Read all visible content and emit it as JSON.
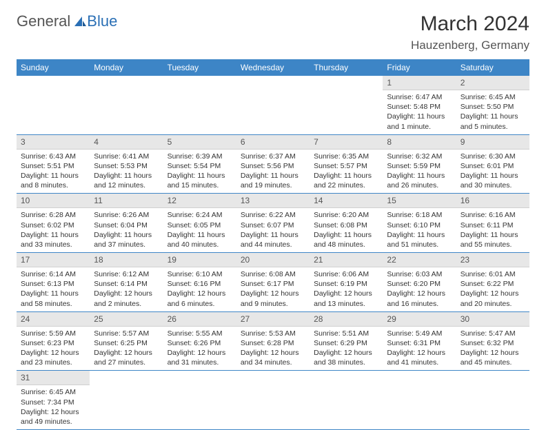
{
  "logo": {
    "word1": "General",
    "word2": "Blue"
  },
  "title": "March 2024",
  "location": "Hauzenberg, Germany",
  "colors": {
    "header_bg": "#3d85c6",
    "header_text": "#ffffff",
    "daynum_bg": "#e7e7e7",
    "rule": "#3d85c6",
    "accent": "#2a6fb5"
  },
  "fonts": {
    "title_pt": 30,
    "location_pt": 17,
    "dow_pt": 12,
    "daynum_pt": 12,
    "body_pt": 10.5
  },
  "days_of_week": [
    "Sunday",
    "Monday",
    "Tuesday",
    "Wednesday",
    "Thursday",
    "Friday",
    "Saturday"
  ],
  "leading_blanks": 5,
  "days": [
    {
      "n": 1,
      "sunrise": "6:47 AM",
      "sunset": "5:48 PM",
      "daylight": "11 hours and 1 minute."
    },
    {
      "n": 2,
      "sunrise": "6:45 AM",
      "sunset": "5:50 PM",
      "daylight": "11 hours and 5 minutes."
    },
    {
      "n": 3,
      "sunrise": "6:43 AM",
      "sunset": "5:51 PM",
      "daylight": "11 hours and 8 minutes."
    },
    {
      "n": 4,
      "sunrise": "6:41 AM",
      "sunset": "5:53 PM",
      "daylight": "11 hours and 12 minutes."
    },
    {
      "n": 5,
      "sunrise": "6:39 AM",
      "sunset": "5:54 PM",
      "daylight": "11 hours and 15 minutes."
    },
    {
      "n": 6,
      "sunrise": "6:37 AM",
      "sunset": "5:56 PM",
      "daylight": "11 hours and 19 minutes."
    },
    {
      "n": 7,
      "sunrise": "6:35 AM",
      "sunset": "5:57 PM",
      "daylight": "11 hours and 22 minutes."
    },
    {
      "n": 8,
      "sunrise": "6:32 AM",
      "sunset": "5:59 PM",
      "daylight": "11 hours and 26 minutes."
    },
    {
      "n": 9,
      "sunrise": "6:30 AM",
      "sunset": "6:01 PM",
      "daylight": "11 hours and 30 minutes."
    },
    {
      "n": 10,
      "sunrise": "6:28 AM",
      "sunset": "6:02 PM",
      "daylight": "11 hours and 33 minutes."
    },
    {
      "n": 11,
      "sunrise": "6:26 AM",
      "sunset": "6:04 PM",
      "daylight": "11 hours and 37 minutes."
    },
    {
      "n": 12,
      "sunrise": "6:24 AM",
      "sunset": "6:05 PM",
      "daylight": "11 hours and 40 minutes."
    },
    {
      "n": 13,
      "sunrise": "6:22 AM",
      "sunset": "6:07 PM",
      "daylight": "11 hours and 44 minutes."
    },
    {
      "n": 14,
      "sunrise": "6:20 AM",
      "sunset": "6:08 PM",
      "daylight": "11 hours and 48 minutes."
    },
    {
      "n": 15,
      "sunrise": "6:18 AM",
      "sunset": "6:10 PM",
      "daylight": "11 hours and 51 minutes."
    },
    {
      "n": 16,
      "sunrise": "6:16 AM",
      "sunset": "6:11 PM",
      "daylight": "11 hours and 55 minutes."
    },
    {
      "n": 17,
      "sunrise": "6:14 AM",
      "sunset": "6:13 PM",
      "daylight": "11 hours and 58 minutes."
    },
    {
      "n": 18,
      "sunrise": "6:12 AM",
      "sunset": "6:14 PM",
      "daylight": "12 hours and 2 minutes."
    },
    {
      "n": 19,
      "sunrise": "6:10 AM",
      "sunset": "6:16 PM",
      "daylight": "12 hours and 6 minutes."
    },
    {
      "n": 20,
      "sunrise": "6:08 AM",
      "sunset": "6:17 PM",
      "daylight": "12 hours and 9 minutes."
    },
    {
      "n": 21,
      "sunrise": "6:06 AM",
      "sunset": "6:19 PM",
      "daylight": "12 hours and 13 minutes."
    },
    {
      "n": 22,
      "sunrise": "6:03 AM",
      "sunset": "6:20 PM",
      "daylight": "12 hours and 16 minutes."
    },
    {
      "n": 23,
      "sunrise": "6:01 AM",
      "sunset": "6:22 PM",
      "daylight": "12 hours and 20 minutes."
    },
    {
      "n": 24,
      "sunrise": "5:59 AM",
      "sunset": "6:23 PM",
      "daylight": "12 hours and 23 minutes."
    },
    {
      "n": 25,
      "sunrise": "5:57 AM",
      "sunset": "6:25 PM",
      "daylight": "12 hours and 27 minutes."
    },
    {
      "n": 26,
      "sunrise": "5:55 AM",
      "sunset": "6:26 PM",
      "daylight": "12 hours and 31 minutes."
    },
    {
      "n": 27,
      "sunrise": "5:53 AM",
      "sunset": "6:28 PM",
      "daylight": "12 hours and 34 minutes."
    },
    {
      "n": 28,
      "sunrise": "5:51 AM",
      "sunset": "6:29 PM",
      "daylight": "12 hours and 38 minutes."
    },
    {
      "n": 29,
      "sunrise": "5:49 AM",
      "sunset": "6:31 PM",
      "daylight": "12 hours and 41 minutes."
    },
    {
      "n": 30,
      "sunrise": "5:47 AM",
      "sunset": "6:32 PM",
      "daylight": "12 hours and 45 minutes."
    },
    {
      "n": 31,
      "sunrise": "6:45 AM",
      "sunset": "7:34 PM",
      "daylight": "12 hours and 49 minutes."
    }
  ],
  "labels": {
    "sunrise": "Sunrise: ",
    "sunset": "Sunset: ",
    "daylight": "Daylight: "
  }
}
